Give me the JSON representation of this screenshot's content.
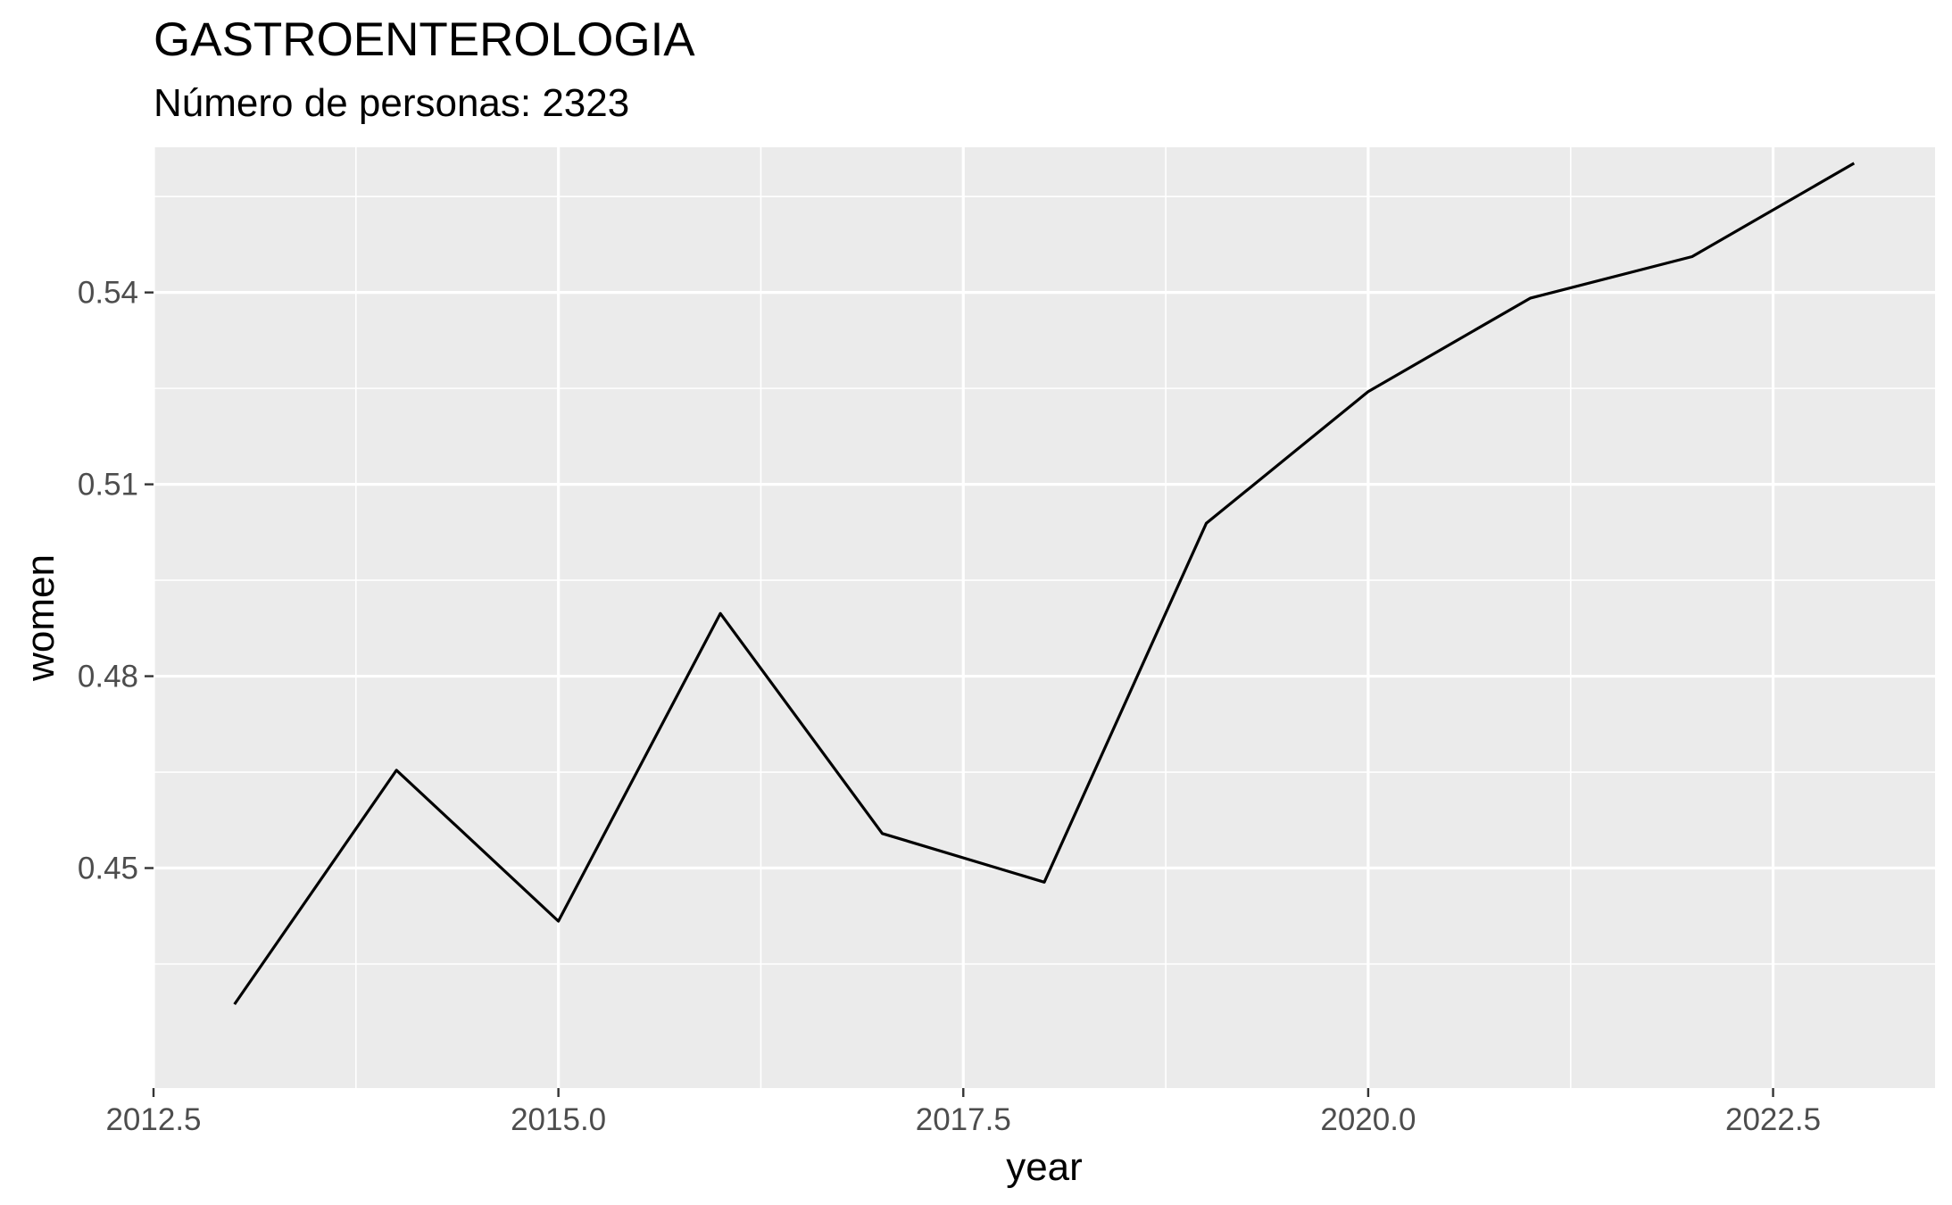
{
  "chart_data": {
    "type": "line",
    "title": "GASTROENTEROLOGIA",
    "subtitle": "Número de personas: 2323",
    "xlabel": "year",
    "ylabel": "women",
    "x": [
      2013,
      2014,
      2015,
      2016,
      2017,
      2018,
      2019,
      2020,
      2021,
      2022,
      2023
    ],
    "series": [
      {
        "values": [
          0.4287,
          0.4653,
          0.4417,
          0.4898,
          0.4554,
          0.4478,
          0.5039,
          0.5245,
          0.5391,
          0.5456,
          0.5602
        ]
      }
    ],
    "xlim": [
      2012.5,
      2023.5
    ],
    "ylim": [
      0.4156,
      0.5627
    ],
    "x_ticks": [
      "2012.5",
      "2015.0",
      "2017.5",
      "2020.0",
      "2022.5"
    ],
    "y_ticks": [
      "0.45",
      "0.48",
      "0.51",
      "0.54"
    ],
    "panel_background": "#ebebeb",
    "grid_color": "#ffffff",
    "line_color": "#000000",
    "grid": true,
    "legend": "none"
  }
}
